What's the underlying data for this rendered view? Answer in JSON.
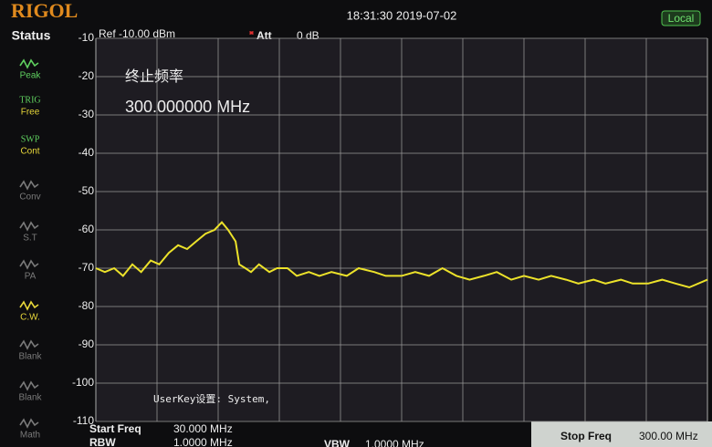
{
  "header": {
    "logo": "RIGOL",
    "datetime": "18:31:30 2019-07-02",
    "mode": "Local"
  },
  "sidebar": {
    "title": "Status",
    "items": [
      {
        "label": "Peak"
      },
      {
        "top": "TRIG",
        "label": "Free"
      },
      {
        "top": "SWP",
        "label": "Cont"
      },
      {
        "label": "Conv"
      },
      {
        "label": "S.T"
      },
      {
        "label": "PA"
      },
      {
        "label": "C.W."
      },
      {
        "label": "Blank"
      },
      {
        "label": "Blank"
      },
      {
        "label": "Math"
      }
    ]
  },
  "chart_data": {
    "type": "line",
    "ref": "Ref -10.00 dBm",
    "att_label": "Att",
    "att_value": "0 dB",
    "annotation_title": "终止频率",
    "annotation_value": "300.000000 MHz",
    "note": "UserKey设置:  System,",
    "x": [
      30,
      34,
      38.1,
      42,
      46.1,
      50,
      54.2,
      58,
      62.2,
      66.3,
      70.3,
      74.3,
      78.4,
      82.4,
      85.6,
      88.4,
      91.7,
      93.3,
      96,
      98.5,
      102,
      106.6,
      110,
      114.6,
      118.7,
      124,
      128.7,
      134,
      140.8,
      146,
      152.9,
      158,
      165,
      171,
      177.1,
      183,
      189.2,
      195,
      201.3,
      207,
      213.4,
      219,
      225.5,
      231,
      237.6,
      243,
      249.7,
      255,
      261.8,
      267,
      273.8,
      280,
      285.9,
      292,
      300
    ],
    "series": [
      {
        "color": "#ece22a",
        "values": [
          -70,
          -71,
          -70,
          -72,
          -69,
          -71,
          -68,
          -69,
          -66,
          -64,
          -65,
          -63,
          -61,
          -60,
          -58,
          -60,
          -63,
          -69,
          -70,
          -71,
          -69,
          -71,
          -70,
          -70,
          -72,
          -71,
          -72,
          -71,
          -72,
          -70,
          -71,
          -72,
          -72,
          -71,
          -72,
          -70,
          -72,
          -73,
          -72,
          -71,
          -73,
          -72,
          -73,
          -72,
          -73,
          -74,
          -73,
          -74,
          -73,
          -74,
          -74,
          -73,
          -74,
          -75,
          -73
        ]
      }
    ],
    "xlim": [
      30,
      300
    ],
    "ylim": [
      -110,
      -10
    ],
    "yticks": [
      -10,
      -20,
      -30,
      -40,
      -50,
      -60,
      -70,
      -80,
      -90,
      -100,
      -110
    ],
    "grid": true
  },
  "footer": {
    "start_label": "Start Freq",
    "start_value": "30.000 MHz",
    "rbw_label": "RBW",
    "rbw_value": "1.0000 MHz",
    "vbw_label": "VBW",
    "vbw_value": "1.0000 MHz",
    "stop_label": "Stop Freq",
    "stop_value": "300.00 MHz"
  }
}
